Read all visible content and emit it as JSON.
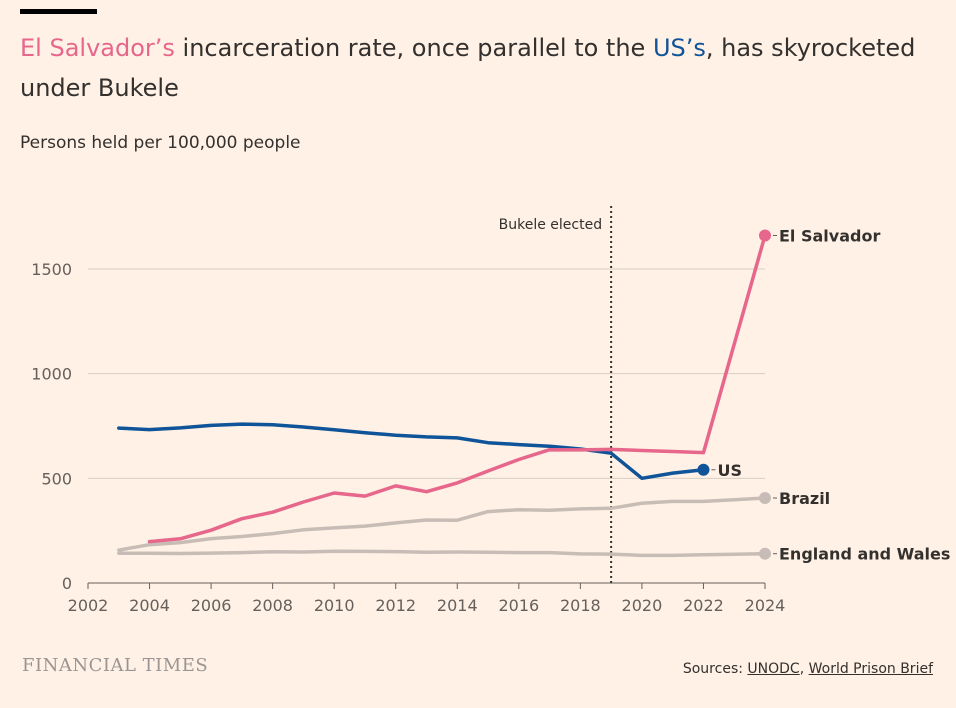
{
  "title": {
    "part1": "El Salvador’s",
    "part2": " incarceration rate, once parallel to the ",
    "part3": "US’s",
    "part4": ", has skyrocketed under Bukele"
  },
  "subtitle": "Persons held per 100,000 people",
  "footer": {
    "brand": "FINANCIAL TIMES",
    "sources_prefix": "Sources: ",
    "source1": "UNODC",
    "separator": ", ",
    "source2": "World Prison Brief"
  },
  "colors": {
    "background": "#fff1e5",
    "el_salvador": "#e7668c",
    "us": "#0f5499",
    "other": "#c8bdb6",
    "grid": "#d8cdc3",
    "text": "#33302e"
  },
  "chart_data": {
    "type": "line",
    "title": "El Salvador’s incarceration rate, once parallel to the US’s, has skyrocketed under Bukele",
    "ylabel": "Persons held per 100,000 people",
    "xlabel": "",
    "xlim": [
      2002,
      2024
    ],
    "ylim": [
      0,
      1700
    ],
    "x_ticks": [
      2002,
      2004,
      2006,
      2008,
      2010,
      2012,
      2014,
      2016,
      2018,
      2020,
      2022,
      2024
    ],
    "y_ticks": [
      0,
      500,
      1000,
      1500
    ],
    "annotation": {
      "label": "Bukele elected",
      "x": 2019
    },
    "series": [
      {
        "name": "England and Wales",
        "color_key": "other",
        "x": [
          2003,
          2004,
          2005,
          2006,
          2007,
          2008,
          2009,
          2010,
          2011,
          2012,
          2013,
          2014,
          2015,
          2016,
          2017,
          2018,
          2019,
          2020,
          2021,
          2022,
          2023,
          2024
        ],
        "values": [
          142,
          142,
          141,
          143,
          145,
          149,
          148,
          152,
          151,
          150,
          147,
          148,
          147,
          145,
          145,
          139,
          138,
          132,
          132,
          135,
          137,
          140
        ]
      },
      {
        "name": "Brazil",
        "color_key": "other",
        "x": [
          2003,
          2004,
          2005,
          2006,
          2007,
          2008,
          2009,
          2010,
          2011,
          2012,
          2013,
          2014,
          2015,
          2016,
          2017,
          2018,
          2019,
          2020,
          2021,
          2022,
          2023,
          2024
        ],
        "values": [
          157,
          183,
          193,
          212,
          222,
          236,
          254,
          263,
          272,
          287,
          301,
          300,
          341,
          350,
          348,
          354,
          357,
          381,
          390,
          390,
          398,
          406
        ]
      },
      {
        "name": "US",
        "color_key": "us",
        "x": [
          2003,
          2004,
          2005,
          2006,
          2007,
          2008,
          2009,
          2010,
          2011,
          2012,
          2013,
          2014,
          2015,
          2016,
          2017,
          2018,
          2019,
          2020,
          2021,
          2022
        ],
        "values": [
          740,
          733,
          741,
          753,
          759,
          756,
          745,
          732,
          718,
          706,
          698,
          693,
          670,
          661,
          653,
          640,
          620,
          500,
          525,
          541
        ]
      },
      {
        "name": "El Salvador",
        "color_key": "el_salvador",
        "x": [
          2004,
          2005,
          2006,
          2007,
          2008,
          2009,
          2010,
          2011,
          2012,
          2013,
          2014,
          2015,
          2016,
          2017,
          2018,
          2019,
          2020,
          2021,
          2022,
          2024
        ],
        "values": [
          198,
          211,
          252,
          307,
          338,
          387,
          430,
          415,
          464,
          436,
          478,
          535,
          590,
          637,
          636,
          638,
          633,
          628,
          623,
          1660
        ]
      }
    ]
  }
}
